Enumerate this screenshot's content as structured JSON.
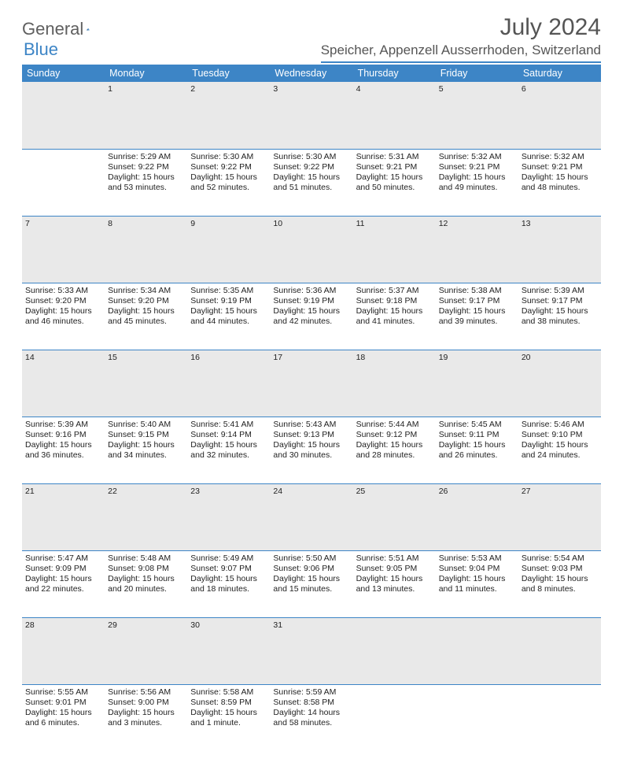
{
  "brand": {
    "part1": "General",
    "part2": "Blue"
  },
  "title": {
    "month": "July 2024",
    "location": "Speicher, Appenzell Ausserrhoden, Switzerland"
  },
  "colors": {
    "accent": "#3d85c6",
    "header_text": "#ffffff",
    "shade": "#e9e9e9",
    "text": "#333333"
  },
  "weekdays": [
    "Sunday",
    "Monday",
    "Tuesday",
    "Wednesday",
    "Thursday",
    "Friday",
    "Saturday"
  ],
  "grid": [
    [
      {
        "day": "",
        "lines": []
      },
      {
        "day": "1",
        "lines": [
          "Sunrise: 5:29 AM",
          "Sunset: 9:22 PM",
          "Daylight: 15 hours and 53 minutes."
        ]
      },
      {
        "day": "2",
        "lines": [
          "Sunrise: 5:30 AM",
          "Sunset: 9:22 PM",
          "Daylight: 15 hours and 52 minutes."
        ]
      },
      {
        "day": "3",
        "lines": [
          "Sunrise: 5:30 AM",
          "Sunset: 9:22 PM",
          "Daylight: 15 hours and 51 minutes."
        ]
      },
      {
        "day": "4",
        "lines": [
          "Sunrise: 5:31 AM",
          "Sunset: 9:21 PM",
          "Daylight: 15 hours and 50 minutes."
        ]
      },
      {
        "day": "5",
        "lines": [
          "Sunrise: 5:32 AM",
          "Sunset: 9:21 PM",
          "Daylight: 15 hours and 49 minutes."
        ]
      },
      {
        "day": "6",
        "lines": [
          "Sunrise: 5:32 AM",
          "Sunset: 9:21 PM",
          "Daylight: 15 hours and 48 minutes."
        ]
      }
    ],
    [
      {
        "day": "7",
        "lines": [
          "Sunrise: 5:33 AM",
          "Sunset: 9:20 PM",
          "Daylight: 15 hours and 46 minutes."
        ]
      },
      {
        "day": "8",
        "lines": [
          "Sunrise: 5:34 AM",
          "Sunset: 9:20 PM",
          "Daylight: 15 hours and 45 minutes."
        ]
      },
      {
        "day": "9",
        "lines": [
          "Sunrise: 5:35 AM",
          "Sunset: 9:19 PM",
          "Daylight: 15 hours and 44 minutes."
        ]
      },
      {
        "day": "10",
        "lines": [
          "Sunrise: 5:36 AM",
          "Sunset: 9:19 PM",
          "Daylight: 15 hours and 42 minutes."
        ]
      },
      {
        "day": "11",
        "lines": [
          "Sunrise: 5:37 AM",
          "Sunset: 9:18 PM",
          "Daylight: 15 hours and 41 minutes."
        ]
      },
      {
        "day": "12",
        "lines": [
          "Sunrise: 5:38 AM",
          "Sunset: 9:17 PM",
          "Daylight: 15 hours and 39 minutes."
        ]
      },
      {
        "day": "13",
        "lines": [
          "Sunrise: 5:39 AM",
          "Sunset: 9:17 PM",
          "Daylight: 15 hours and 38 minutes."
        ]
      }
    ],
    [
      {
        "day": "14",
        "lines": [
          "Sunrise: 5:39 AM",
          "Sunset: 9:16 PM",
          "Daylight: 15 hours and 36 minutes."
        ]
      },
      {
        "day": "15",
        "lines": [
          "Sunrise: 5:40 AM",
          "Sunset: 9:15 PM",
          "Daylight: 15 hours and 34 minutes."
        ]
      },
      {
        "day": "16",
        "lines": [
          "Sunrise: 5:41 AM",
          "Sunset: 9:14 PM",
          "Daylight: 15 hours and 32 minutes."
        ]
      },
      {
        "day": "17",
        "lines": [
          "Sunrise: 5:43 AM",
          "Sunset: 9:13 PM",
          "Daylight: 15 hours and 30 minutes."
        ]
      },
      {
        "day": "18",
        "lines": [
          "Sunrise: 5:44 AM",
          "Sunset: 9:12 PM",
          "Daylight: 15 hours and 28 minutes."
        ]
      },
      {
        "day": "19",
        "lines": [
          "Sunrise: 5:45 AM",
          "Sunset: 9:11 PM",
          "Daylight: 15 hours and 26 minutes."
        ]
      },
      {
        "day": "20",
        "lines": [
          "Sunrise: 5:46 AM",
          "Sunset: 9:10 PM",
          "Daylight: 15 hours and 24 minutes."
        ]
      }
    ],
    [
      {
        "day": "21",
        "lines": [
          "Sunrise: 5:47 AM",
          "Sunset: 9:09 PM",
          "Daylight: 15 hours and 22 minutes."
        ]
      },
      {
        "day": "22",
        "lines": [
          "Sunrise: 5:48 AM",
          "Sunset: 9:08 PM",
          "Daylight: 15 hours and 20 minutes."
        ]
      },
      {
        "day": "23",
        "lines": [
          "Sunrise: 5:49 AM",
          "Sunset: 9:07 PM",
          "Daylight: 15 hours and 18 minutes."
        ]
      },
      {
        "day": "24",
        "lines": [
          "Sunrise: 5:50 AM",
          "Sunset: 9:06 PM",
          "Daylight: 15 hours and 15 minutes."
        ]
      },
      {
        "day": "25",
        "lines": [
          "Sunrise: 5:51 AM",
          "Sunset: 9:05 PM",
          "Daylight: 15 hours and 13 minutes."
        ]
      },
      {
        "day": "26",
        "lines": [
          "Sunrise: 5:53 AM",
          "Sunset: 9:04 PM",
          "Daylight: 15 hours and 11 minutes."
        ]
      },
      {
        "day": "27",
        "lines": [
          "Sunrise: 5:54 AM",
          "Sunset: 9:03 PM",
          "Daylight: 15 hours and 8 minutes."
        ]
      }
    ],
    [
      {
        "day": "28",
        "lines": [
          "Sunrise: 5:55 AM",
          "Sunset: 9:01 PM",
          "Daylight: 15 hours and 6 minutes."
        ]
      },
      {
        "day": "29",
        "lines": [
          "Sunrise: 5:56 AM",
          "Sunset: 9:00 PM",
          "Daylight: 15 hours and 3 minutes."
        ]
      },
      {
        "day": "30",
        "lines": [
          "Sunrise: 5:58 AM",
          "Sunset: 8:59 PM",
          "Daylight: 15 hours and 1 minute."
        ]
      },
      {
        "day": "31",
        "lines": [
          "Sunrise: 5:59 AM",
          "Sunset: 8:58 PM",
          "Daylight: 14 hours and 58 minutes."
        ]
      },
      {
        "day": "",
        "lines": []
      },
      {
        "day": "",
        "lines": []
      },
      {
        "day": "",
        "lines": []
      }
    ]
  ]
}
